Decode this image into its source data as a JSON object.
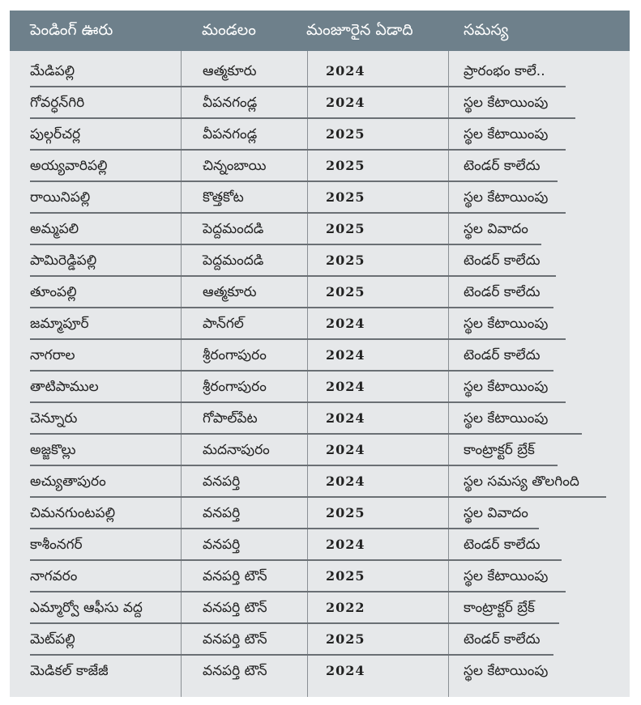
{
  "table": {
    "headers": [
      "పెండింగ్ ఊరు",
      "మండలం",
      "మంజూరైన ఏడాది",
      "సమస్య"
    ],
    "rows": [
      [
        "మేడిపల్లి",
        "ఆత్మకూరు",
        "2024",
        "ప్రారంభం కాలే.."
      ],
      [
        "గోవర్ధన్‌గిరి",
        "వీపనగండ్ల",
        "2024",
        "స్థల కేటాయింపు"
      ],
      [
        "పుల్గర్‌చర్ల",
        "వీపనగండ్ల",
        "2025",
        "స్థల కేటాయింపు"
      ],
      [
        "అయ్యవారిపల్లి",
        "చిన్నంబాయి",
        "2025",
        "టెండర్ కాలేదు"
      ],
      [
        "రాయినిపల్లి",
        "కొత్తకోట",
        "2025",
        "స్థల కేటాయింపు"
      ],
      [
        "అమ్మపలి",
        "పెద్దమందడి",
        "2025",
        "స్థల వివాదం"
      ],
      [
        "పామిరెడ్డిపల్లి",
        "పెద్దమందడి",
        "2025",
        "టెండర్ కాలేదు"
      ],
      [
        "తూంపల్లి",
        "ఆత్మకూరు",
        "2025",
        "టెండర్ కాలేదు"
      ],
      [
        "జమ్మాపూర్",
        "పాన్‌గల్",
        "2024",
        "స్థల కేటాయింపు"
      ],
      [
        "నాగరాల",
        "శ్రీరంగాపురం",
        "2024",
        "టెండర్ కాలేదు"
      ],
      [
        "తాటిపాముల",
        "శ్రీరంగాపురం",
        "2024",
        "స్థల కేటాయింపు"
      ],
      [
        "చెన్నూరు",
        "గోపాల్‌పేట",
        "2024",
        "స్థల కేటాయింపు"
      ],
      [
        "అజ్జకొల్లు",
        "మదనాపురం",
        "2024",
        "కాంట్రాక్టర్ బ్రేక్"
      ],
      [
        "అచ్యుతాపురం",
        "వనపర్తి",
        "2024",
        "స్థల సమస్య తొలగింది"
      ],
      [
        "చిమనగుంటపల్లి",
        "వనపర్తి",
        "2025",
        "స్థల వివాదం"
      ],
      [
        "కాశీంనగర్",
        "వనపర్తి",
        "2024",
        "టెండర్ కాలేదు"
      ],
      [
        "నాగవరం",
        "వనపర్తి టౌన్",
        "2025",
        "స్థల కేటాయింపు"
      ],
      [
        "ఎమ్మార్వో ఆఫీసు వద్ద",
        "వనపర్తి టౌన్",
        "2022",
        "కాంట్రాక్టర్ బ్రేక్"
      ],
      [
        "మెట్‌పల్లి",
        "వనపర్తి టౌన్",
        "2025",
        "టెండర్ కాలేదు"
      ],
      [
        "మెడికల్ కాజేజీ",
        "వనపర్తి టౌన్",
        "2024",
        "స్థల కేటాయింపు"
      ]
    ]
  },
  "colors": {
    "header_bg": "#6e808b",
    "body_bg": "#e6e8ea"
  }
}
